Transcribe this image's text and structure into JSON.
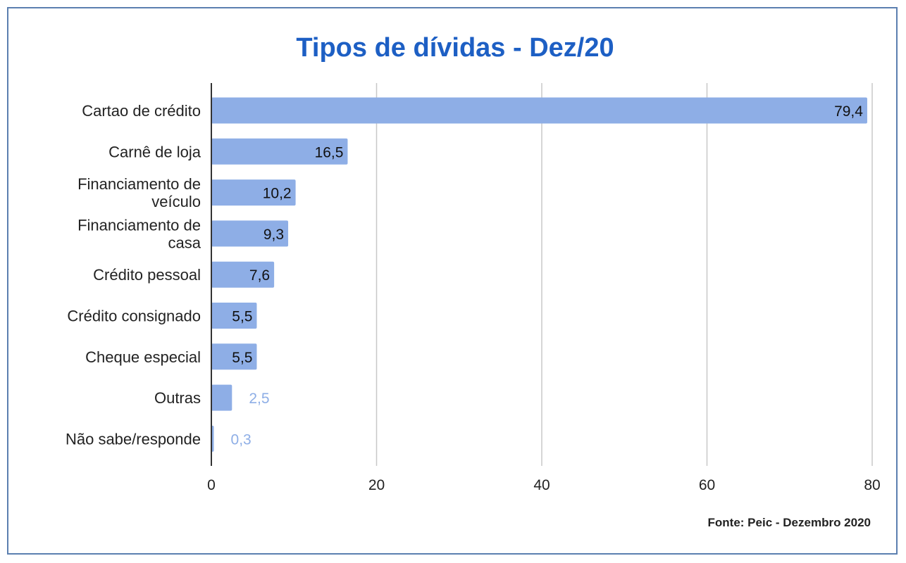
{
  "chart_data": {
    "type": "bar",
    "orientation": "horizontal",
    "title": "Tipos de dívidas - Dez/20",
    "categories": [
      "Cartao de crédito",
      "Carnê de loja",
      "Financiamento de veículo",
      "Financiamento de casa",
      "Crédito pessoal",
      "Crédito consignado",
      "Cheque especial",
      "Outras",
      "Não sabe/responde"
    ],
    "category_lines": [
      [
        "Cartao de crédito"
      ],
      [
        "Carnê de loja"
      ],
      [
        "Financiamento de",
        "veículo"
      ],
      [
        "Financiamento de",
        "casa"
      ],
      [
        "Crédito pessoal"
      ],
      [
        "Crédito consignado"
      ],
      [
        "Cheque especial"
      ],
      [
        "Outras"
      ],
      [
        "Não sabe/responde"
      ]
    ],
    "values": [
      79.4,
      16.5,
      10.2,
      9.3,
      7.6,
      5.5,
      5.5,
      2.5,
      0.3
    ],
    "value_labels": [
      "79,4",
      "16,5",
      "10,2",
      "9,3",
      "7,6",
      "5,5",
      "5,5",
      "2,5",
      "0,3"
    ],
    "xlim": [
      0,
      80
    ],
    "xticks": [
      0,
      20,
      40,
      60,
      80
    ],
    "xtick_labels": [
      "0",
      "20",
      "40",
      "60",
      "80"
    ],
    "xlabel": "",
    "ylabel": "",
    "grid": "vertical",
    "legend": "none",
    "bar_color": "#8eaee6",
    "title_color": "#1d5fc4",
    "source": "Fonte: Peic - Dezembro 2020"
  }
}
